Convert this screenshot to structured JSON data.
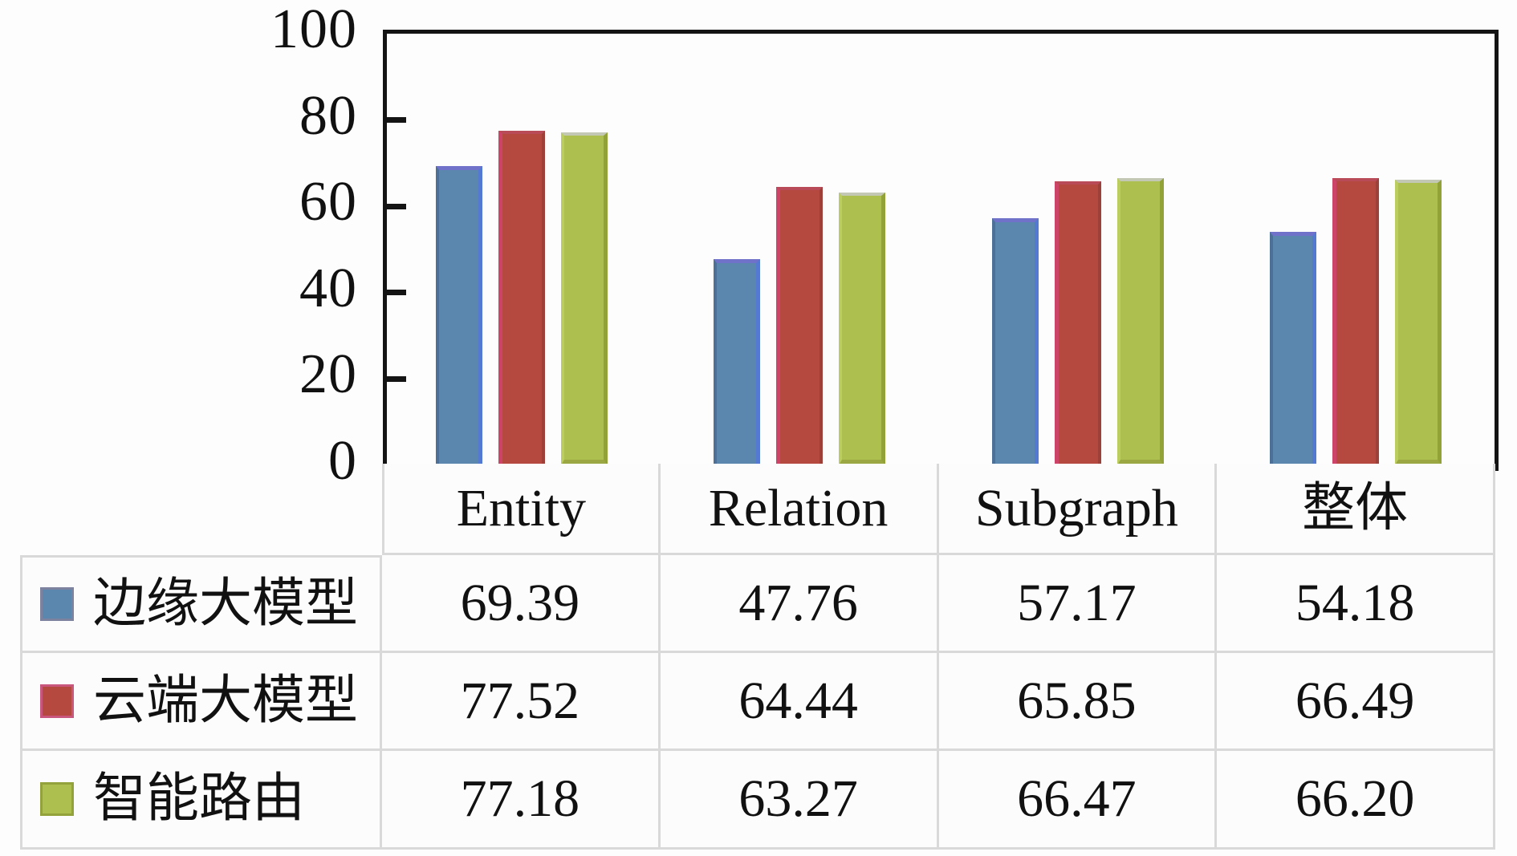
{
  "figure": {
    "background": "#fdfdfd",
    "axis_color": "#141414",
    "table_border_color": "#d9d9d9",
    "text_color": "#111111"
  },
  "chart_data": {
    "type": "bar",
    "title": "",
    "categories": [
      "Entity",
      "Relation",
      "Subgraph",
      "整体"
    ],
    "series": [
      {
        "name": "边缘大模型",
        "color": "#5b86ae",
        "values": [
          69.39,
          47.76,
          57.17,
          54.18
        ]
      },
      {
        "name": "云端大模型",
        "color": "#b5493f",
        "values": [
          77.52,
          64.44,
          65.85,
          66.49
        ]
      },
      {
        "name": "智能路由",
        "color": "#adc04f",
        "values": [
          77.18,
          63.27,
          66.47,
          66.2
        ]
      }
    ],
    "xlabel": "",
    "ylabel": "",
    "ylim": [
      0,
      100
    ],
    "yticks": [
      "0",
      "20",
      "40",
      "60",
      "80",
      "100"
    ],
    "grid": false,
    "legend_position": "left column of data table below plot"
  },
  "table": {
    "column_headers": [
      "Entity",
      "Relation",
      "Subgraph",
      "整体"
    ],
    "rows": [
      {
        "label": "边缘大模型",
        "swatch_color": "#5b86ae",
        "values": [
          "69.39",
          "47.76",
          "57.17",
          "54.18"
        ]
      },
      {
        "label": "云端大模型",
        "swatch_color": "#b5493f",
        "values": [
          "77.52",
          "64.44",
          "65.85",
          "66.49"
        ]
      },
      {
        "label": "智能路由",
        "swatch_color": "#adc04f",
        "values": [
          "77.18",
          "63.27",
          "66.47",
          "66.20"
        ]
      }
    ]
  }
}
